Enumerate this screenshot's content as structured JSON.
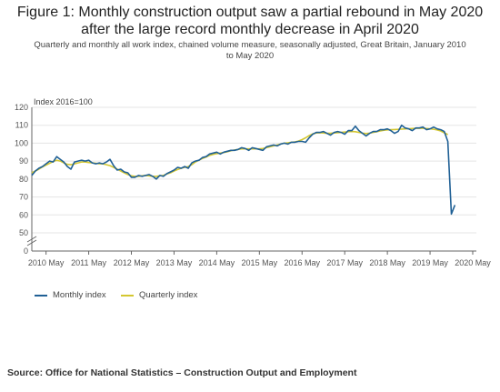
{
  "title_line1": "Figure 1: Monthly construction output saw a partial rebound in May 2020",
  "title_line2": "after the large record monthly decrease in April 2020",
  "subtitle_line1": "Quarterly and monthly all work index, chained volume measure, seasonally adjusted, Great Britain, January 2010",
  "subtitle_line2": "to May 2020",
  "source": "Source: Office for National Statistics – Construction Output and Employment",
  "colors": {
    "monthly": "#206095",
    "quarterly": "#d4c730",
    "axis": "#666666",
    "grid": "#e5e5e5"
  },
  "chart_data": {
    "type": "line",
    "ylabel": "Index 2016=100",
    "ylim": [
      0,
      120
    ],
    "y_ticks": [
      "0",
      "50",
      "60",
      "70",
      "80",
      "90",
      "100",
      "110",
      "120"
    ],
    "axis_break": true,
    "x_tick_labels": [
      "2010 May",
      "2011 May",
      "2012 May",
      "2013 May",
      "2014 May",
      "2015 May",
      "2016 May",
      "2017 May",
      "2018 May",
      "2019 May",
      "2020 May"
    ],
    "legend_position": "bottom-left",
    "series": [
      {
        "name": "Monthly index",
        "start": "2010-01",
        "values": [
          82.0,
          84.5,
          86.0,
          87.0,
          88.5,
          90.0,
          89.5,
          92.5,
          91.0,
          89.5,
          87.0,
          85.5,
          89.5,
          90.0,
          90.5,
          90.0,
          90.5,
          89.0,
          88.5,
          89.0,
          88.5,
          89.5,
          91.0,
          87.5,
          85.0,
          85.5,
          84.0,
          83.5,
          81.0,
          81.0,
          82.0,
          81.5,
          82.0,
          82.5,
          81.5,
          80.0,
          82.0,
          81.5,
          83.0,
          84.0,
          85.0,
          86.5,
          86.0,
          87.0,
          86.0,
          89.0,
          90.0,
          90.5,
          92.0,
          92.5,
          94.0,
          94.5,
          95.0,
          94.0,
          95.0,
          95.5,
          96.0,
          96.0,
          96.5,
          97.5,
          97.0,
          96.0,
          97.5,
          97.0,
          96.5,
          96.0,
          98.0,
          98.5,
          99.0,
          98.5,
          99.5,
          100.0,
          99.5,
          100.5,
          100.5,
          101.0,
          101.0,
          100.5,
          103.0,
          105.0,
          106.0,
          106.0,
          106.5,
          105.5,
          104.5,
          106.0,
          106.5,
          106.0,
          105.0,
          107.0,
          107.0,
          109.5,
          107.0,
          105.5,
          104.0,
          105.5,
          106.5,
          106.5,
          107.5,
          107.5,
          108.0,
          107.0,
          105.5,
          106.5,
          110.0,
          108.5,
          108.0,
          107.0,
          108.5,
          108.5,
          109.0,
          107.5,
          108.0,
          109.0,
          108.0,
          107.5,
          106.5,
          101.0,
          60.5,
          65.5
        ]
      },
      {
        "name": "Quarterly index",
        "start": "2010-01",
        "values": [
          83.5,
          84.5,
          85.5,
          86.8,
          87.8,
          88.8,
          89.8,
          90.5,
          90.0,
          89.0,
          88.2,
          88.0,
          88.5,
          89.0,
          89.5,
          89.5,
          89.2,
          89.0,
          88.8,
          88.5,
          88.5,
          88.0,
          87.5,
          86.5,
          85.5,
          84.5,
          83.5,
          82.5,
          81.8,
          81.5,
          81.5,
          81.8,
          82.0,
          81.8,
          81.5,
          81.5,
          81.8,
          82.0,
          82.8,
          83.5,
          84.5,
          85.3,
          86.0,
          86.5,
          87.0,
          88.0,
          89.5,
          90.5,
          91.5,
          92.3,
          93.2,
          93.8,
          94.2,
          94.5,
          94.8,
          95.2,
          95.8,
          96.2,
          96.5,
          96.8,
          96.8,
          96.8,
          96.8,
          96.8,
          96.8,
          97.0,
          97.5,
          98.0,
          98.5,
          99.0,
          99.5,
          100.0,
          100.2,
          100.5,
          100.7,
          101.2,
          102.0,
          103.0,
          104.2,
          105.2,
          105.7,
          105.8,
          105.7,
          105.5,
          105.5,
          105.7,
          105.8,
          106.0,
          106.2,
          106.4,
          106.5,
          106.4,
          106.0,
          105.6,
          105.4,
          105.6,
          106.0,
          106.4,
          106.8,
          107.2,
          107.4,
          107.5,
          107.6,
          107.7,
          107.9,
          108.0,
          108.1,
          108.2,
          108.3,
          108.3,
          108.3,
          108.2,
          108.0,
          107.8,
          107.4,
          106.8,
          105.8,
          104.8
        ]
      }
    ]
  }
}
